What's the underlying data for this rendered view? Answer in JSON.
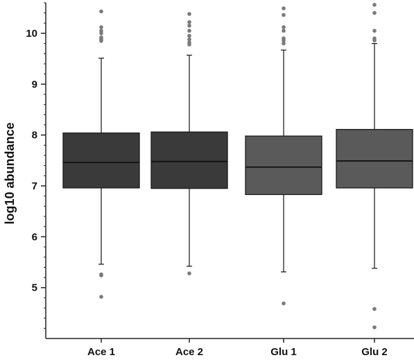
{
  "chart_data": {
    "type": "box",
    "title": "",
    "xlabel": "",
    "ylabel": "log10 abundance",
    "ylim": [
      4.0,
      10.6
    ],
    "yticks": [
      5,
      6,
      7,
      8,
      9,
      10
    ],
    "yticks_labels": [
      "5",
      "6",
      "7",
      "8",
      "9",
      "10"
    ],
    "categories": [
      "Ace 1",
      "Ace 2",
      "Glu 1",
      "Glu 2"
    ],
    "grid": false,
    "legend": "none",
    "box_colors": [
      "#3a3a3a",
      "#3a3a3a",
      "#5a5a5a",
      "#5a5a5a"
    ],
    "outlier_color": "#7a7a7a",
    "boxes": [
      {
        "name": "Ace 1",
        "whisker_low": 5.46,
        "q1": 6.96,
        "median": 7.46,
        "q3": 8.04,
        "whisker_high": 9.51,
        "outliers": [
          4.82,
          5.24,
          5.26,
          9.85,
          9.87,
          9.9,
          9.92,
          10.0,
          10.05,
          10.12,
          10.43
        ]
      },
      {
        "name": "Ace 2",
        "whisker_low": 5.42,
        "q1": 6.95,
        "median": 7.48,
        "q3": 8.06,
        "whisker_high": 9.57,
        "outliers": [
          5.28,
          9.78,
          9.82,
          9.88,
          9.95,
          10.05,
          10.15,
          10.22,
          10.38
        ]
      },
      {
        "name": "Glu 1",
        "whisker_low": 5.31,
        "q1": 6.83,
        "median": 7.37,
        "q3": 7.98,
        "whisker_high": 9.67,
        "outliers": [
          4.69,
          9.8,
          9.86,
          9.9,
          10.05,
          10.12,
          10.36,
          10.49
        ]
      },
      {
        "name": "Glu 2",
        "whisker_low": 5.38,
        "q1": 6.96,
        "median": 7.49,
        "q3": 8.11,
        "whisker_high": 9.8,
        "outliers": [
          4.22,
          4.58,
          9.86,
          9.9,
          10.05,
          10.4,
          10.56
        ]
      }
    ]
  }
}
